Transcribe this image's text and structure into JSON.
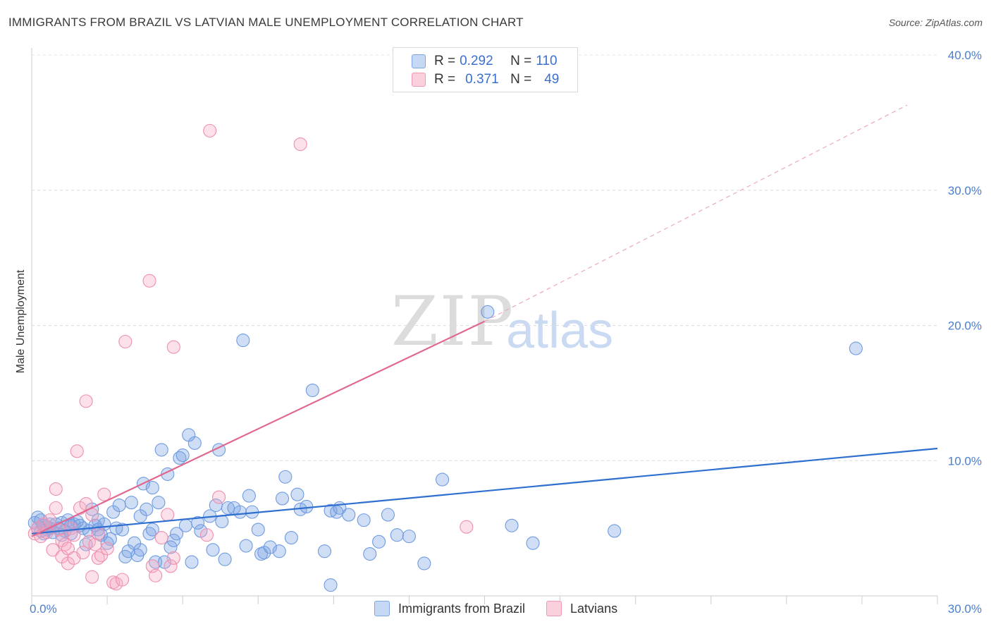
{
  "title": "IMMIGRANTS FROM BRAZIL VS LATVIAN MALE UNEMPLOYMENT CORRELATION CHART",
  "source": "Source: ZipAtlas.com",
  "watermark": {
    "zip": "ZIP",
    "atlas": "atlas"
  },
  "legend": {
    "r_label": "R =",
    "n_label": "N =",
    "rows": [
      {
        "r": "0.292",
        "n": "110",
        "color": "#a9c6ee"
      },
      {
        "r": "0.371",
        "n": "49",
        "color": "#f6b8cb"
      }
    ]
  },
  "bottom_legend": [
    "Immigrants from Brazil",
    "Latvians"
  ],
  "chart_data": {
    "type": "scatter",
    "title": "IMMIGRANTS FROM BRAZIL VS LATVIAN MALE UNEMPLOYMENT CORRELATION CHART",
    "xlabel": "",
    "ylabel": "Male Unemployment",
    "xlim": [
      0,
      30
    ],
    "ylim": [
      0,
      40
    ],
    "x_tick_labels": [
      "0.0%",
      "30.0%"
    ],
    "y_tick_labels": [
      "10.0%",
      "20.0%",
      "30.0%",
      "40.0%"
    ],
    "y_ticks": [
      10,
      20,
      30,
      40
    ],
    "grid": true,
    "series": [
      {
        "name": "Immigrants from Brazil",
        "color": "#6e9be0",
        "fill": "rgba(120,160,225,0.35)",
        "trend": {
          "x0": 0,
          "y0": 4.6,
          "x1": 30,
          "y1": 10.9,
          "color": "#2f6fcf"
        },
        "points": [
          [
            0.1,
            5.4
          ],
          [
            0.2,
            5.8
          ],
          [
            0.2,
            5.0
          ],
          [
            0.3,
            4.8
          ],
          [
            0.3,
            5.6
          ],
          [
            0.4,
            4.6
          ],
          [
            0.4,
            5.2
          ],
          [
            0.5,
            4.9
          ],
          [
            0.5,
            5.1
          ],
          [
            0.6,
            5.0
          ],
          [
            0.7,
            4.7
          ],
          [
            0.8,
            5.3
          ],
          [
            0.9,
            5.0
          ],
          [
            1.0,
            5.4
          ],
          [
            1.0,
            4.5
          ],
          [
            1.1,
            4.8
          ],
          [
            1.2,
            5.6
          ],
          [
            1.3,
            5.2
          ],
          [
            1.4,
            5.3
          ],
          [
            1.5,
            5.5
          ],
          [
            1.6,
            5.2
          ],
          [
            1.7,
            5.0
          ],
          [
            1.8,
            3.8
          ],
          [
            1.9,
            4.8
          ],
          [
            2.0,
            6.4
          ],
          [
            2.1,
            5.2
          ],
          [
            2.2,
            4.9
          ],
          [
            2.3,
            4.5
          ],
          [
            2.4,
            5.3
          ],
          [
            2.5,
            3.9
          ],
          [
            2.6,
            4.2
          ],
          [
            2.7,
            6.2
          ],
          [
            2.8,
            5.0
          ],
          [
            2.9,
            6.7
          ],
          [
            3.0,
            4.9
          ],
          [
            3.1,
            2.9
          ],
          [
            3.2,
            3.3
          ],
          [
            3.3,
            6.9
          ],
          [
            3.4,
            3.9
          ],
          [
            3.5,
            3.0
          ],
          [
            3.6,
            3.4
          ],
          [
            3.7,
            8.3
          ],
          [
            3.8,
            6.4
          ],
          [
            3.9,
            4.6
          ],
          [
            4.0,
            4.9
          ],
          [
            4.0,
            8.0
          ],
          [
            4.1,
            2.5
          ],
          [
            4.2,
            6.9
          ],
          [
            4.3,
            10.8
          ],
          [
            4.4,
            2.5
          ],
          [
            4.5,
            9.0
          ],
          [
            4.6,
            3.6
          ],
          [
            4.7,
            4.1
          ],
          [
            4.8,
            4.6
          ],
          [
            4.9,
            10.2
          ],
          [
            5.0,
            10.4
          ],
          [
            5.1,
            5.2
          ],
          [
            5.2,
            11.9
          ],
          [
            5.3,
            2.5
          ],
          [
            5.4,
            11.3
          ],
          [
            5.5,
            5.4
          ],
          [
            5.6,
            4.8
          ],
          [
            5.9,
            5.9
          ],
          [
            6.0,
            3.4
          ],
          [
            6.1,
            6.7
          ],
          [
            6.2,
            10.8
          ],
          [
            6.3,
            5.5
          ],
          [
            6.4,
            2.7
          ],
          [
            6.5,
            6.5
          ],
          [
            6.7,
            6.5
          ],
          [
            6.9,
            6.2
          ],
          [
            7.0,
            18.9
          ],
          [
            7.1,
            3.7
          ],
          [
            7.2,
            7.4
          ],
          [
            7.3,
            6.2
          ],
          [
            7.5,
            4.9
          ],
          [
            7.6,
            3.1
          ],
          [
            7.7,
            3.2
          ],
          [
            7.9,
            3.6
          ],
          [
            8.2,
            3.3
          ],
          [
            8.3,
            7.2
          ],
          [
            8.4,
            8.8
          ],
          [
            8.6,
            4.3
          ],
          [
            8.8,
            7.5
          ],
          [
            8.9,
            6.4
          ],
          [
            9.1,
            6.6
          ],
          [
            9.3,
            15.2
          ],
          [
            9.7,
            3.3
          ],
          [
            9.9,
            0.8
          ],
          [
            9.9,
            6.3
          ],
          [
            10.1,
            6.2
          ],
          [
            10.2,
            6.5
          ],
          [
            10.5,
            6.0
          ],
          [
            11.0,
            5.6
          ],
          [
            11.2,
            3.1
          ],
          [
            11.5,
            4.0
          ],
          [
            11.8,
            6.0
          ],
          [
            12.1,
            4.5
          ],
          [
            12.5,
            4.4
          ],
          [
            13.0,
            2.4
          ],
          [
            13.6,
            8.6
          ],
          [
            15.1,
            21.0
          ],
          [
            15.9,
            5.2
          ],
          [
            16.6,
            3.9
          ],
          [
            19.3,
            4.8
          ],
          [
            27.3,
            18.3
          ],
          [
            0.6,
            5.3
          ],
          [
            1.3,
            4.6
          ],
          [
            2.2,
            5.6
          ],
          [
            3.6,
            5.9
          ]
        ]
      },
      {
        "name": "Latvians",
        "color": "#ee8fad",
        "fill": "rgba(245,170,195,0.35)",
        "trend": {
          "x0": 0,
          "y0": 4.4,
          "x1": 15.0,
          "y1": 20.3,
          "x2": 29.0,
          "y2": 36.3,
          "color": "#e06890"
        },
        "points": [
          [
            0.1,
            4.6
          ],
          [
            0.2,
            5.0
          ],
          [
            0.3,
            4.4
          ],
          [
            0.4,
            5.3
          ],
          [
            0.5,
            4.7
          ],
          [
            0.6,
            5.6
          ],
          [
            0.7,
            3.4
          ],
          [
            0.8,
            7.9
          ],
          [
            0.8,
            6.5
          ],
          [
            0.9,
            4.9
          ],
          [
            1.0,
            2.9
          ],
          [
            1.0,
            4.1
          ],
          [
            1.1,
            3.8
          ],
          [
            1.2,
            3.5
          ],
          [
            1.2,
            2.4
          ],
          [
            1.3,
            5.0
          ],
          [
            1.4,
            4.5
          ],
          [
            1.4,
            2.8
          ],
          [
            1.5,
            10.7
          ],
          [
            1.6,
            6.5
          ],
          [
            1.7,
            3.2
          ],
          [
            1.8,
            6.8
          ],
          [
            1.8,
            14.4
          ],
          [
            1.9,
            4.0
          ],
          [
            2.0,
            6.0
          ],
          [
            2.0,
            1.4
          ],
          [
            2.1,
            3.8
          ],
          [
            2.2,
            4.6
          ],
          [
            2.2,
            2.8
          ],
          [
            2.3,
            3.0
          ],
          [
            2.4,
            7.5
          ],
          [
            2.5,
            3.5
          ],
          [
            2.7,
            1.0
          ],
          [
            2.8,
            0.9
          ],
          [
            3.0,
            1.2
          ],
          [
            3.1,
            18.8
          ],
          [
            3.9,
            23.3
          ],
          [
            4.0,
            2.2
          ],
          [
            4.1,
            1.5
          ],
          [
            4.3,
            4.3
          ],
          [
            4.5,
            6.0
          ],
          [
            4.6,
            2.2
          ],
          [
            4.7,
            2.8
          ],
          [
            4.7,
            18.4
          ],
          [
            5.8,
            4.5
          ],
          [
            5.9,
            34.4
          ],
          [
            6.2,
            7.3
          ],
          [
            8.9,
            33.4
          ],
          [
            14.4,
            5.1
          ]
        ]
      }
    ]
  }
}
